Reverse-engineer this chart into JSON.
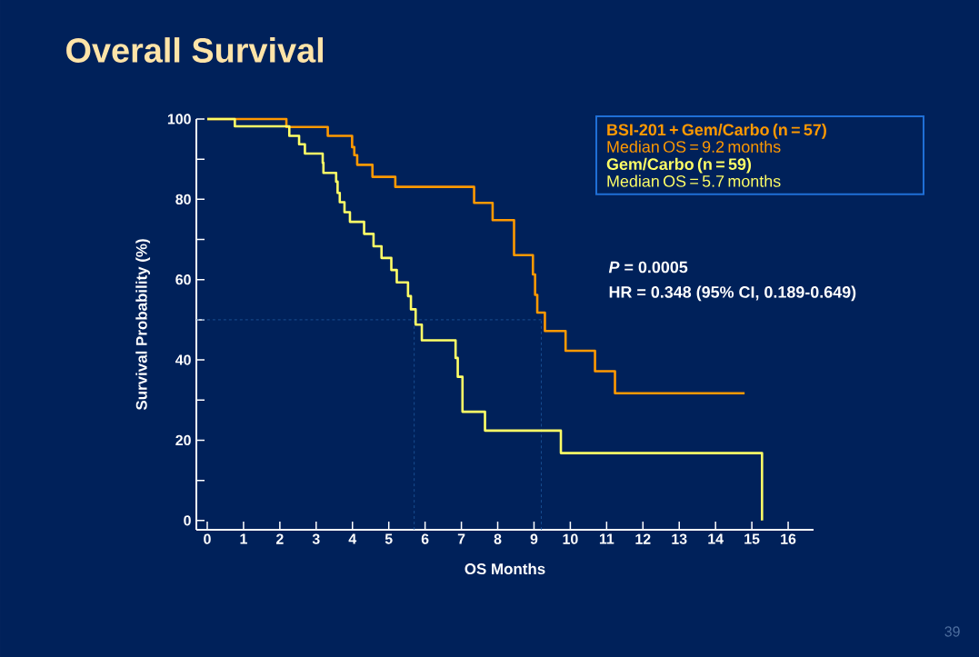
{
  "chart_data": {
    "type": "step",
    "title": "Overall Survival",
    "xlabel": "OS Months",
    "ylabel": "Survival Probability (%)",
    "xlim": [
      -0.3,
      16.7
    ],
    "ylim": [
      -2.3,
      100
    ],
    "xticks": [
      0,
      1,
      2,
      3,
      4,
      5,
      6,
      7,
      8,
      9,
      10,
      11,
      12,
      13,
      14,
      15,
      16
    ],
    "yticks": [
      0,
      {
        "value": 10,
        "label": null
      },
      20,
      {
        "value": 30,
        "label": null
      },
      40,
      {
        "value": 50,
        "label": null
      },
      60,
      {
        "value": 70,
        "label": null
      },
      80,
      {
        "value": 90,
        "label": null
      },
      100
    ],
    "legend": "top right",
    "series": [
      {
        "name": "BSI-201 + Gem/Carbo (n = 57)",
        "color": "#ff9900",
        "x": [
          0,
          2.18,
          3.32,
          3.99,
          4.05,
          4.13,
          4.55,
          5.18,
          7.35,
          7.86,
          8.45,
          8.97,
          9.03,
          9.09,
          9.3,
          9.87,
          10.68,
          11.23,
          14.8
        ],
        "values": [
          100,
          98,
          95.8,
          93,
          91,
          88.6,
          85.6,
          83.1,
          79.1,
          74.8,
          66.1,
          61.3,
          56.2,
          51.8,
          47.2,
          42.3,
          37.2,
          31.7,
          31.7
        ]
      },
      {
        "name": "Gem/Carbo (n = 59)",
        "color": "#ffff66",
        "x": [
          0,
          0.76,
          2.26,
          2.53,
          2.69,
          3.18,
          3.2,
          3.55,
          3.59,
          3.65,
          3.78,
          3.93,
          4.32,
          4.58,
          4.8,
          5.07,
          5.22,
          5.53,
          5.61,
          5.74,
          5.91,
          6.84,
          6.9,
          7.03,
          7.65,
          9.74,
          15.28
        ],
        "values": [
          100,
          98.2,
          95.8,
          93.7,
          91.4,
          89.1,
          86.6,
          84.4,
          81.6,
          79.3,
          76.8,
          74.4,
          71.4,
          68.3,
          65.4,
          62.4,
          59.3,
          55.9,
          52.6,
          48.8,
          44.9,
          40.5,
          35.8,
          27.1,
          22.4,
          16.8,
          0
        ]
      }
    ],
    "ref_lines": [
      {
        "axis": "y",
        "value": 50,
        "color": "#1e5aa0",
        "line_style": "dashed"
      },
      {
        "axis": "x",
        "value": 5.7,
        "color": "#1e5aa0",
        "line_style": "dashed"
      },
      {
        "axis": "x",
        "value": 9.2,
        "color": "#1e5aa0",
        "line_style": "dashed"
      }
    ],
    "annotations": [
      "Median OS = 9.2 months",
      "Median OS = 5.7 months",
      "*P* = 0.0005",
      "HR = 0.348 (95% CI, 0.189-0.649)",
      "39"
    ]
  }
}
